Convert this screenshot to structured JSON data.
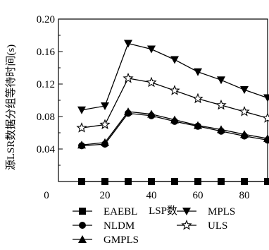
{
  "chart_data": {
    "type": "line",
    "title": "",
    "xlabel": "LSP数",
    "ylabel": "源LSR数据分组等待时间(s)",
    "xlim": [
      0,
      90
    ],
    "ylim": [
      0,
      0.2
    ],
    "xticks": [
      0,
      20,
      40,
      60,
      80
    ],
    "yticks": [
      0.04,
      0.08,
      0.12,
      0.16,
      0.2
    ],
    "ytick_labels": [
      "0.04",
      "0.08",
      "0.12",
      "0.16",
      "0.20"
    ],
    "grid": false,
    "legend_position": "bottom",
    "x": [
      10,
      20,
      30,
      40,
      50,
      60,
      70,
      80,
      90
    ],
    "series": [
      {
        "name": "EAEBL",
        "marker": "square",
        "values": [
          0.0,
          0.0,
          0.0,
          0.0,
          0.0,
          0.0,
          0.0,
          0.0,
          0.0
        ]
      },
      {
        "name": "NLDM",
        "marker": "circle",
        "values": [
          0.044,
          0.046,
          0.084,
          0.081,
          0.074,
          0.068,
          0.062,
          0.056,
          0.051
        ]
      },
      {
        "name": "GMPLS",
        "marker": "triangle-up",
        "values": [
          0.045,
          0.048,
          0.086,
          0.083,
          0.076,
          0.069,
          0.064,
          0.058,
          0.053
        ]
      },
      {
        "name": "MPLS",
        "marker": "triangle-down",
        "values": [
          0.088,
          0.093,
          0.17,
          0.163,
          0.15,
          0.135,
          0.125,
          0.113,
          0.103
        ]
      },
      {
        "name": "ULS",
        "marker": "star",
        "values": [
          0.066,
          0.07,
          0.127,
          0.122,
          0.112,
          0.102,
          0.094,
          0.086,
          0.078
        ]
      }
    ]
  }
}
